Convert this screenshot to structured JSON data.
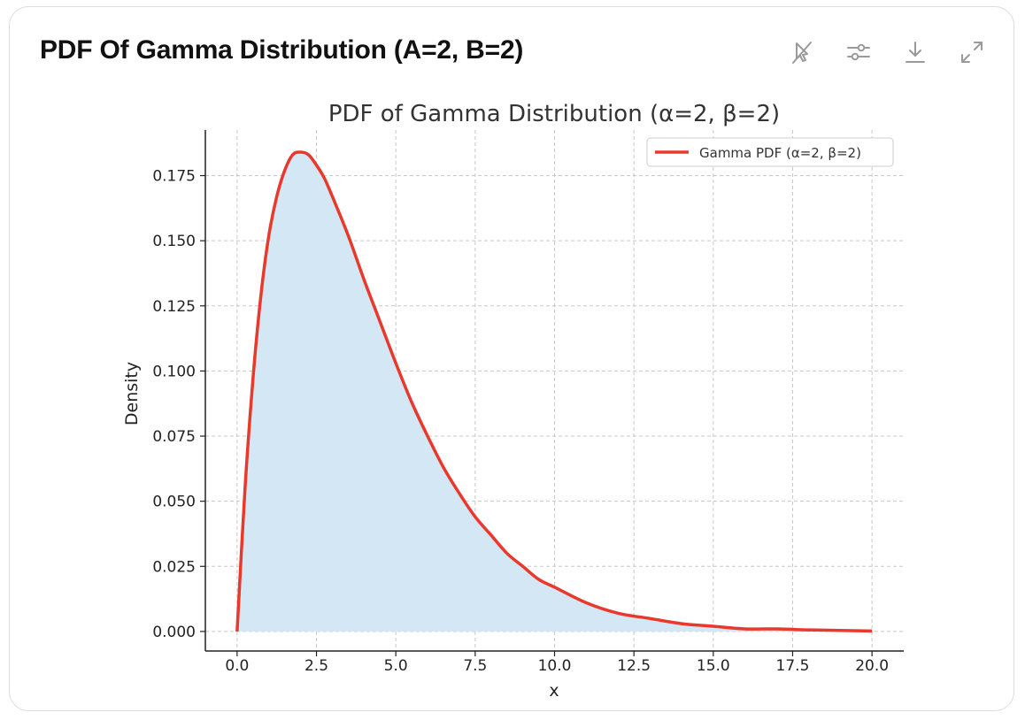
{
  "card": {
    "title": "PDF Of Gamma Distribution (A=2, B=2)",
    "toolbar": [
      {
        "name": "disable-interactive-button",
        "icon": "pointer-slash-icon"
      },
      {
        "name": "chart-settings-button",
        "icon": "sliders-icon"
      },
      {
        "name": "download-button",
        "icon": "download-icon"
      },
      {
        "name": "expand-button",
        "icon": "expand-icon"
      }
    ]
  },
  "colors": {
    "line": "#e8392c",
    "fill": "#d4e7f5",
    "grid": "#c8c8c8",
    "axis": "#222222",
    "toolbar_icon": "#9a9a9a"
  },
  "chart_data": {
    "type": "area",
    "title": "PDF of Gamma Distribution (α=2, β=2)",
    "xlabel": "x",
    "ylabel": "Density",
    "xlim": [
      -1,
      21
    ],
    "ylim": [
      -0.0075,
      0.1925
    ],
    "xticks": [
      0,
      2.5,
      5,
      7.5,
      10,
      12.5,
      15,
      17.5,
      20
    ],
    "xtick_labels": [
      "0.0",
      "2.5",
      "5.0",
      "7.5",
      "10.0",
      "12.5",
      "15.0",
      "17.5",
      "20.0"
    ],
    "yticks": [
      0,
      0.025,
      0.05,
      0.075,
      0.1,
      0.125,
      0.15,
      0.175
    ],
    "ytick_labels": [
      "0.000",
      "0.025",
      "0.050",
      "0.075",
      "0.100",
      "0.125",
      "0.150",
      "0.175"
    ],
    "grid": true,
    "grid_style": "dashed",
    "legend": {
      "position": "top-right",
      "entries": [
        "Gamma PDF (α=2, β=2)"
      ]
    },
    "series": [
      {
        "name": "Gamma PDF (α=2, β=2)",
        "x": [
          0,
          0.25,
          0.5,
          0.75,
          1,
          1.25,
          1.5,
          1.75,
          2,
          2.25,
          2.5,
          2.75,
          3,
          3.5,
          4,
          4.5,
          5,
          5.5,
          6,
          6.5,
          7,
          7.5,
          8,
          8.5,
          9,
          9.5,
          10,
          11,
          12,
          13,
          14,
          15,
          16,
          17,
          18,
          19,
          20
        ],
        "y": [
          0,
          0.055,
          0.097,
          0.129,
          0.152,
          0.167,
          0.177,
          0.183,
          0.184,
          0.183,
          0.179,
          0.174,
          0.167,
          0.152,
          0.135,
          0.119,
          0.103,
          0.088,
          0.075,
          0.063,
          0.053,
          0.044,
          0.037,
          0.03,
          0.025,
          0.02,
          0.017,
          0.011,
          0.007,
          0.005,
          0.003,
          0.002,
          0.001,
          0.001,
          0.0006,
          0.0004,
          0.0002
        ]
      }
    ]
  }
}
